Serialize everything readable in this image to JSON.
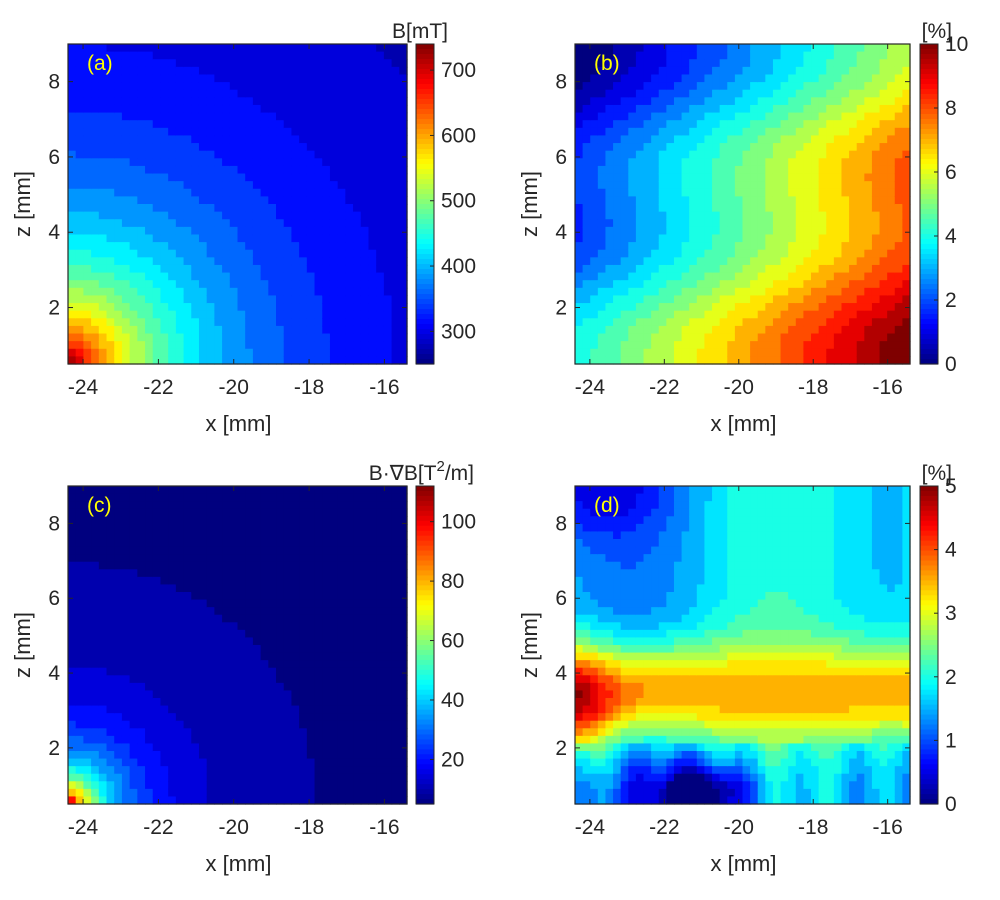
{
  "colors": {
    "jet": [
      "#00007f",
      "#0000ff",
      "#007fff",
      "#00ffff",
      "#7fff7f",
      "#ffff00",
      "#ff7f00",
      "#ff0000",
      "#7f0000"
    ],
    "axis": "#262626",
    "panel_tag": "#ffff00"
  },
  "chart_data": [
    {
      "type": "heatmap",
      "panel_label": "(a)",
      "xlabel": "x [mm]",
      "ylabel": "z [mm]",
      "xlim": [
        -24.4,
        -15.4
      ],
      "ylim": [
        0.5,
        9
      ],
      "x_ticks": [
        -24,
        -22,
        -20,
        -18,
        -16
      ],
      "y_ticks": [
        2,
        4,
        6,
        8
      ],
      "colorbar": {
        "title": "B[mT]",
        "range": [
          250,
          740
        ],
        "ticks": [
          300,
          400,
          500,
          600,
          700
        ]
      },
      "field": "radial",
      "center": [
        -24.4,
        0.5
      ],
      "max_value": 740,
      "min_value": 255,
      "decay_scale": 10.5,
      "decay_power": 1.25,
      "levels": 22
    },
    {
      "type": "heatmap",
      "panel_label": "(b)",
      "xlabel": "x [mm]",
      "ylabel": "z [mm]",
      "xlim": [
        -24.4,
        -15.4
      ],
      "ylim": [
        0.5,
        9
      ],
      "x_ticks": [
        -24,
        -22,
        -20,
        -18,
        -16
      ],
      "y_ticks": [
        2,
        4,
        6,
        8
      ],
      "colorbar": {
        "title": "[%]",
        "range": [
          0,
          10
        ],
        "ticks": [
          0,
          2,
          4,
          6,
          8,
          10
        ]
      },
      "field": "diagonal",
      "corner_low": [
        -24.4,
        9
      ],
      "corner_high": [
        -15.4,
        0.5
      ],
      "max_value": 10,
      "levels": 20
    },
    {
      "type": "heatmap",
      "panel_label": "(c)",
      "xlabel": "x [mm]",
      "ylabel": "z [mm]",
      "xlim": [
        -24.4,
        -15.4
      ],
      "ylim": [
        0.5,
        9
      ],
      "x_ticks": [
        -24,
        -22,
        -20,
        -18,
        -16
      ],
      "y_ticks": [
        2,
        4,
        6,
        8
      ],
      "colorbar": {
        "title_prefix": "B·∇B[T",
        "title_sup": "2",
        "title_suffix": "/m]",
        "range": [
          5,
          112
        ],
        "ticks": [
          20,
          40,
          60,
          80,
          100
        ]
      },
      "field": "radial",
      "center": [
        -24.4,
        0.5
      ],
      "max_value": 112,
      "min_value": 5,
      "decay_scale": 2.6,
      "decay_power": 1.0,
      "levels": 22
    },
    {
      "type": "heatmap",
      "panel_label": "(d)",
      "xlabel": "x [mm]",
      "ylabel": "z [mm]",
      "xlim": [
        -24.4,
        -15.4
      ],
      "ylim": [
        0.5,
        9
      ],
      "x_ticks": [
        -24,
        -22,
        -20,
        -18,
        -16
      ],
      "y_ticks": [
        2,
        4,
        6,
        8
      ],
      "colorbar": {
        "title": "[%]",
        "range": [
          0,
          5
        ],
        "ticks": [
          0,
          1,
          2,
          3,
          4,
          5
        ]
      },
      "field": "banded",
      "band_center_z": 3.5,
      "band_peak": 3.6,
      "max_value": 5,
      "levels": 20
    }
  ]
}
